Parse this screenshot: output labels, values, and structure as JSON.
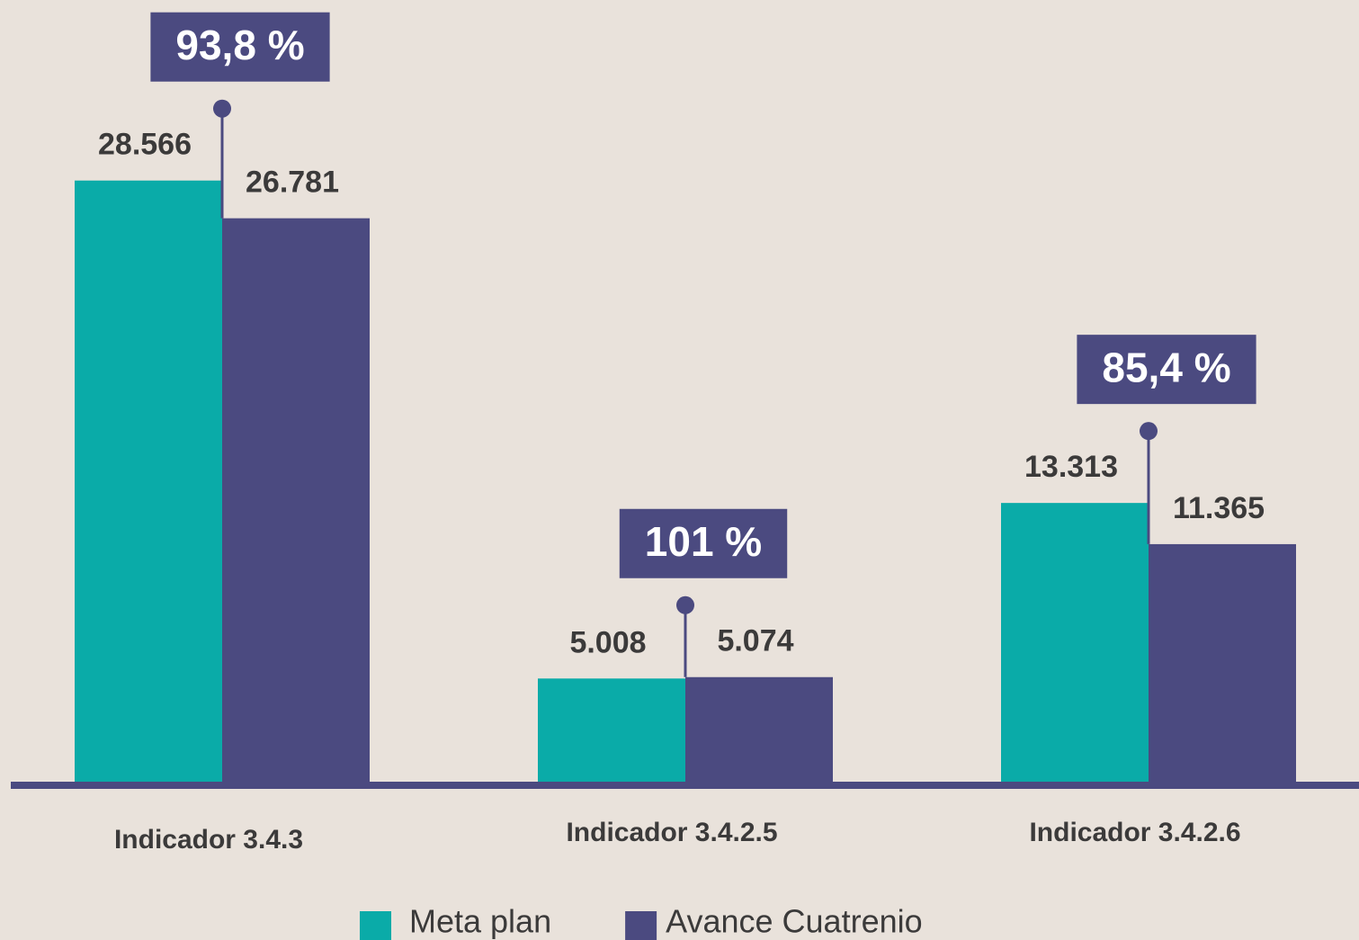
{
  "chart_data": {
    "type": "bar",
    "categories": [
      "Indicador 3.4.3",
      "Indicador 3.4.2.5",
      "Indicador 3.4.2.6"
    ],
    "series": [
      {
        "name": "Meta plan",
        "color": "#0aaba8",
        "values": [
          28566,
          5008,
          13313
        ],
        "value_labels": [
          "28.566",
          "5.008",
          "13.313"
        ]
      },
      {
        "name": "Avance Cuatrenio",
        "color": "#4b4a80",
        "values": [
          26781,
          5074,
          11365
        ],
        "value_labels": [
          "26.781",
          "5.074",
          "11.365"
        ]
      }
    ],
    "annotations": [
      "93,8 %",
      "101 %",
      "85,4 %"
    ],
    "ylim": [
      0,
      30000
    ],
    "legend": "bottom"
  }
}
